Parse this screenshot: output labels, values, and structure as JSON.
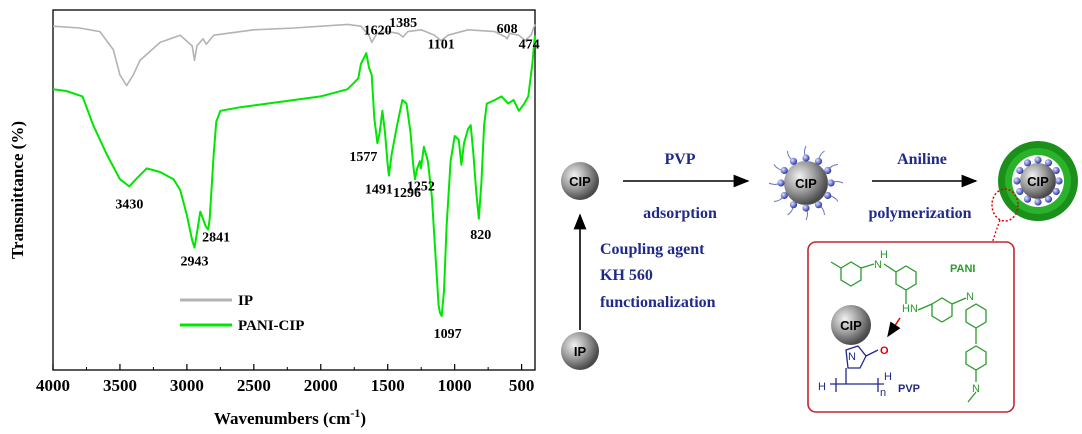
{
  "chart_data": {
    "type": "line",
    "title": "",
    "xlabel": "Wavenumbers (cm",
    "xlabel_sup": "-1",
    "xlabel_close": ")",
    "ylabel": "Transmittance (%)",
    "xlim": [
      4000,
      400
    ],
    "ylim": [
      0,
      100
    ],
    "reversed_x": true,
    "grid": false,
    "legend_position": "bottom-left",
    "x_ticks": [
      "4000",
      "3500",
      "3000",
      "2500",
      "2000",
      "1500",
      "1000",
      "500"
    ],
    "series": [
      {
        "name": "IP",
        "color": "#b3b3b3",
        "points": [
          [
            4000,
            95.5
          ],
          [
            3800,
            95
          ],
          [
            3650,
            94
          ],
          [
            3550,
            89
          ],
          [
            3500,
            82
          ],
          [
            3450,
            79
          ],
          [
            3400,
            82
          ],
          [
            3350,
            86
          ],
          [
            3200,
            91
          ],
          [
            3050,
            93
          ],
          [
            2960,
            90
          ],
          [
            2943,
            86
          ],
          [
            2925,
            90
          ],
          [
            2880,
            92
          ],
          [
            2855,
            90.5
          ],
          [
            2800,
            93
          ],
          [
            2500,
            94.5
          ],
          [
            2200,
            95
          ],
          [
            1800,
            96
          ],
          [
            1700,
            95.5
          ],
          [
            1640,
            93
          ],
          [
            1620,
            91
          ],
          [
            1580,
            93.5
          ],
          [
            1500,
            94
          ],
          [
            1420,
            93.5
          ],
          [
            1385,
            92.5
          ],
          [
            1350,
            94
          ],
          [
            1250,
            94.5
          ],
          [
            1150,
            93
          ],
          [
            1101,
            91.5
          ],
          [
            1050,
            93
          ],
          [
            900,
            94.5
          ],
          [
            700,
            94
          ],
          [
            620,
            92.5
          ],
          [
            608,
            92
          ],
          [
            590,
            93.5
          ],
          [
            520,
            93
          ],
          [
            474,
            91.5
          ],
          [
            430,
            93
          ],
          [
            400,
            96
          ]
        ]
      },
      {
        "name": "PANI-CIP",
        "color": "#00e600",
        "points": [
          [
            4000,
            78
          ],
          [
            3900,
            77.5
          ],
          [
            3780,
            76
          ],
          [
            3700,
            68
          ],
          [
            3600,
            60
          ],
          [
            3500,
            53
          ],
          [
            3430,
            51
          ],
          [
            3380,
            53
          ],
          [
            3300,
            56
          ],
          [
            3200,
            55
          ],
          [
            3100,
            53
          ],
          [
            3050,
            50
          ],
          [
            3000,
            43
          ],
          [
            2960,
            36
          ],
          [
            2943,
            34
          ],
          [
            2925,
            38
          ],
          [
            2900,
            44
          ],
          [
            2880,
            42
          ],
          [
            2860,
            40
          ],
          [
            2841,
            39
          ],
          [
            2830,
            42
          ],
          [
            2800,
            60
          ],
          [
            2780,
            69
          ],
          [
            2750,
            72
          ],
          [
            2600,
            73
          ],
          [
            2400,
            74
          ],
          [
            2200,
            75
          ],
          [
            2000,
            76
          ],
          [
            1900,
            77
          ],
          [
            1800,
            78
          ],
          [
            1720,
            81
          ],
          [
            1700,
            85
          ],
          [
            1660,
            88
          ],
          [
            1640,
            84
          ],
          [
            1620,
            82
          ],
          [
            1600,
            70
          ],
          [
            1577,
            63
          ],
          [
            1560,
            66
          ],
          [
            1540,
            72
          ],
          [
            1520,
            66
          ],
          [
            1500,
            57
          ],
          [
            1491,
            54
          ],
          [
            1470,
            60
          ],
          [
            1430,
            68
          ],
          [
            1390,
            75
          ],
          [
            1360,
            74
          ],
          [
            1330,
            66
          ],
          [
            1310,
            57
          ],
          [
            1296,
            53
          ],
          [
            1280,
            56
          ],
          [
            1260,
            58
          ],
          [
            1252,
            56
          ],
          [
            1230,
            62
          ],
          [
            1200,
            58
          ],
          [
            1170,
            48
          ],
          [
            1140,
            30
          ],
          [
            1120,
            18
          ],
          [
            1110,
            16
          ],
          [
            1097,
            15
          ],
          [
            1080,
            22
          ],
          [
            1060,
            40
          ],
          [
            1030,
            58
          ],
          [
            1000,
            65
          ],
          [
            970,
            64
          ],
          [
            950,
            57
          ],
          [
            930,
            63
          ],
          [
            900,
            67
          ],
          [
            880,
            68
          ],
          [
            860,
            60
          ],
          [
            840,
            50
          ],
          [
            820,
            42
          ],
          [
            800,
            52
          ],
          [
            780,
            68
          ],
          [
            760,
            74
          ],
          [
            700,
            75
          ],
          [
            650,
            76
          ],
          [
            600,
            74
          ],
          [
            560,
            75
          ],
          [
            520,
            72
          ],
          [
            480,
            74
          ],
          [
            450,
            76
          ],
          [
            420,
            85
          ],
          [
            400,
            93
          ]
        ]
      }
    ],
    "peak_labels": [
      {
        "text": "3430",
        "x": 3430,
        "y": 51
      },
      {
        "text": "2943",
        "x": 2943,
        "y": 34
      },
      {
        "text": "2841",
        "x": 2841,
        "y": 39
      },
      {
        "text": "1577",
        "x": 1577,
        "y": 63
      },
      {
        "text": "1491",
        "x": 1491,
        "y": 54
      },
      {
        "text": "1296",
        "x": 1296,
        "y": 53
      },
      {
        "text": "1252",
        "x": 1252,
        "y": 56
      },
      {
        "text": "1097",
        "x": 1097,
        "y": 15
      },
      {
        "text": "820",
        "x": 820,
        "y": 42
      },
      {
        "text": "1620",
        "x": 1620,
        "y": 91
      },
      {
        "text": "1385",
        "x": 1385,
        "y": 92.5
      },
      {
        "text": "1101",
        "x": 1101,
        "y": 91.5
      },
      {
        "text": "608",
        "x": 608,
        "y": 92
      },
      {
        "text": "474",
        "x": 474,
        "y": 91.5
      }
    ]
  },
  "scheme": {
    "cip_label": "CIP",
    "ip_label": "IP",
    "step1_top": "PVP",
    "step1_bottom": "adsorption",
    "step2_top": "Aniline",
    "step2_bottom": "polymerization",
    "vertical_line1": "Coupling agent",
    "vertical_line2": "KH 560",
    "vertical_line3": "functionalization",
    "inset": {
      "pani_label": "PANI",
      "pvp_label": "PVP",
      "cip_label": "CIP",
      "nh1": "H",
      "n1": "N",
      "hn": "HN",
      "n2": "N",
      "n3": "N",
      "o": "O",
      "n_pvp": "N",
      "h_left": "H",
      "h_right": "H",
      "n_sub": "n"
    }
  }
}
